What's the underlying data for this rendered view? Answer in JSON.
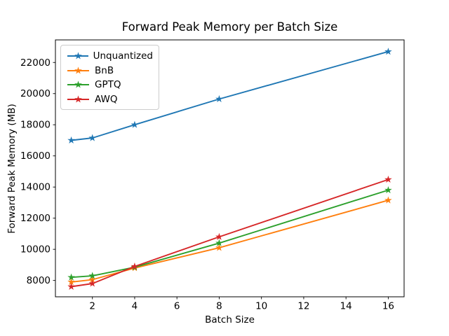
{
  "chart_data": {
    "type": "line",
    "title": "Forward Peak Memory per Batch Size",
    "xlabel": "Batch Size",
    "ylabel": "Forward Peak Memory (MB)",
    "x": [
      1,
      2,
      4,
      8,
      16
    ],
    "series": [
      {
        "name": "Unquantized",
        "color": "#1f77b4",
        "values": [
          17000,
          17150,
          18000,
          19650,
          22700
        ]
      },
      {
        "name": "BnB",
        "color": "#ff7f0e",
        "values": [
          7900,
          8050,
          8800,
          10100,
          13150
        ]
      },
      {
        "name": "GPTQ",
        "color": "#2ca02c",
        "values": [
          8200,
          8300,
          8850,
          10400,
          13800
        ]
      },
      {
        "name": "AWQ",
        "color": "#d62728",
        "values": [
          7600,
          7800,
          8900,
          10800,
          14480
        ]
      }
    ],
    "marker": "star",
    "xlim": [
      0.25,
      16.75
    ],
    "ylim": [
      6950,
      23450
    ],
    "xticks": [
      2,
      4,
      6,
      8,
      10,
      12,
      14,
      16
    ],
    "yticks": [
      8000,
      10000,
      12000,
      14000,
      16000,
      18000,
      20000,
      22000
    ],
    "legend_position": "upper left",
    "grid": false,
    "background": "#ffffff"
  }
}
